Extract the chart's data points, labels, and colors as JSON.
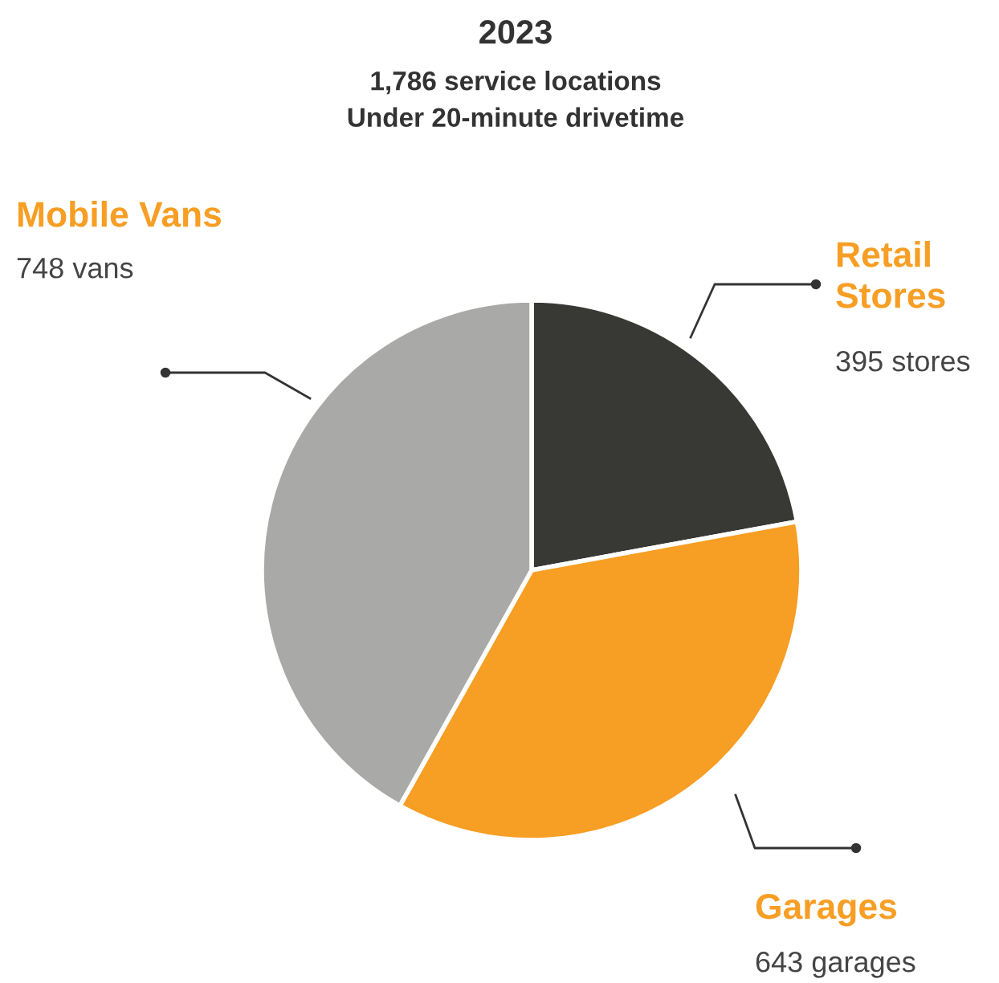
{
  "chart_data": {
    "type": "pie",
    "title": "2023",
    "subtitle": "1,786 service locations\nUnder 20-minute drivetime",
    "categories": [
      "Retail\nStores",
      "Garages",
      "Mobile Vans"
    ],
    "values": [
      395,
      643,
      748
    ],
    "colors": [
      "#383834",
      "#f79e24",
      "#a9a9a7"
    ],
    "value_labels": [
      "395 stores",
      "643 garages",
      "748 vans"
    ]
  }
}
